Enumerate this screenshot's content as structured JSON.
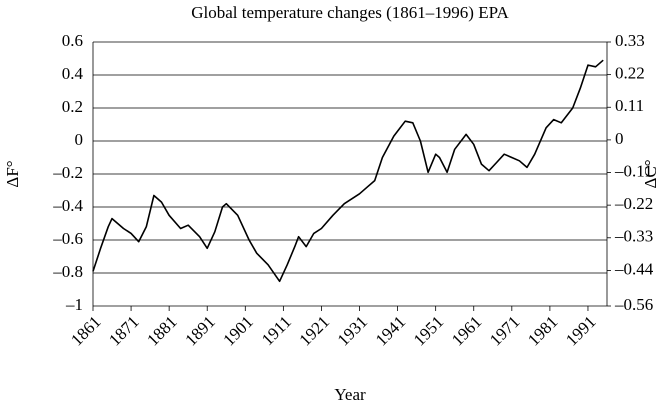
{
  "chart_data": {
    "type": "line",
    "title": "Global temperature changes (1861–1996) EPA",
    "xlabel": "Year",
    "ylabel": "ΔF°",
    "y2label": "ΔC°",
    "x": [
      1861,
      1863,
      1865,
      1866,
      1869,
      1871,
      1873,
      1875,
      1877,
      1879,
      1881,
      1884,
      1886,
      1889,
      1891,
      1893,
      1895,
      1896,
      1899,
      1902,
      1904,
      1907,
      1910,
      1912,
      1914,
      1915,
      1917,
      1919,
      1921,
      1924,
      1927,
      1931,
      1933,
      1935,
      1937,
      1940,
      1943,
      1945,
      1947,
      1949,
      1951,
      1952,
      1954,
      1956,
      1959,
      1961,
      1963,
      1965,
      1967,
      1969,
      1971,
      1973,
      1975,
      1977,
      1980,
      1982,
      1984,
      1987,
      1989,
      1991,
      1993,
      1995
    ],
    "series": [
      {
        "name": "ΔF",
        "color": "#000000",
        "values": [
          -0.79,
          -0.65,
          -0.52,
          -0.47,
          -0.53,
          -0.56,
          -0.61,
          -0.52,
          -0.33,
          -0.37,
          -0.45,
          -0.53,
          -0.51,
          -0.58,
          -0.65,
          -0.55,
          -0.4,
          -0.38,
          -0.45,
          -0.6,
          -0.68,
          -0.75,
          -0.85,
          -0.75,
          -0.64,
          -0.58,
          -0.64,
          -0.56,
          -0.53,
          -0.45,
          -0.38,
          -0.32,
          -0.28,
          -0.24,
          -0.1,
          0.03,
          0.12,
          0.11,
          0.0,
          -0.19,
          -0.08,
          -0.1,
          -0.19,
          -0.05,
          0.04,
          -0.02,
          -0.14,
          -0.18,
          -0.13,
          -0.08,
          -0.1,
          -0.12,
          -0.16,
          -0.08,
          0.08,
          0.13,
          0.11,
          0.2,
          0.32,
          0.46,
          0.45,
          0.49
        ]
      }
    ],
    "xlim": [
      1861,
      1996
    ],
    "xticks": [
      1861,
      1871,
      1881,
      1891,
      1901,
      1911,
      1921,
      1931,
      1941,
      1951,
      1961,
      1971,
      1981,
      1991
    ],
    "ylim": [
      -1,
      0.6
    ],
    "yticks": [
      {
        "value": -1,
        "label": "–1"
      },
      {
        "value": -0.8,
        "label": "–0.8"
      },
      {
        "value": -0.6,
        "label": "–0.6"
      },
      {
        "value": -0.4,
        "label": "–0.4"
      },
      {
        "value": -0.2,
        "label": "–0.2"
      },
      0,
      0.2,
      0.4,
      0.6
    ],
    "y2lim": [
      -0.56,
      0.33
    ],
    "y2ticks": [
      {
        "value": -0.56,
        "label": "–0.56"
      },
      {
        "value": -0.44,
        "label": "–0.44"
      },
      {
        "value": -0.33,
        "label": "–0.33"
      },
      {
        "value": -0.22,
        "label": "–0.22"
      },
      {
        "value": -0.11,
        "label": "–0.11"
      },
      0,
      0.11,
      0.22,
      0.33
    ],
    "grid": true
  }
}
